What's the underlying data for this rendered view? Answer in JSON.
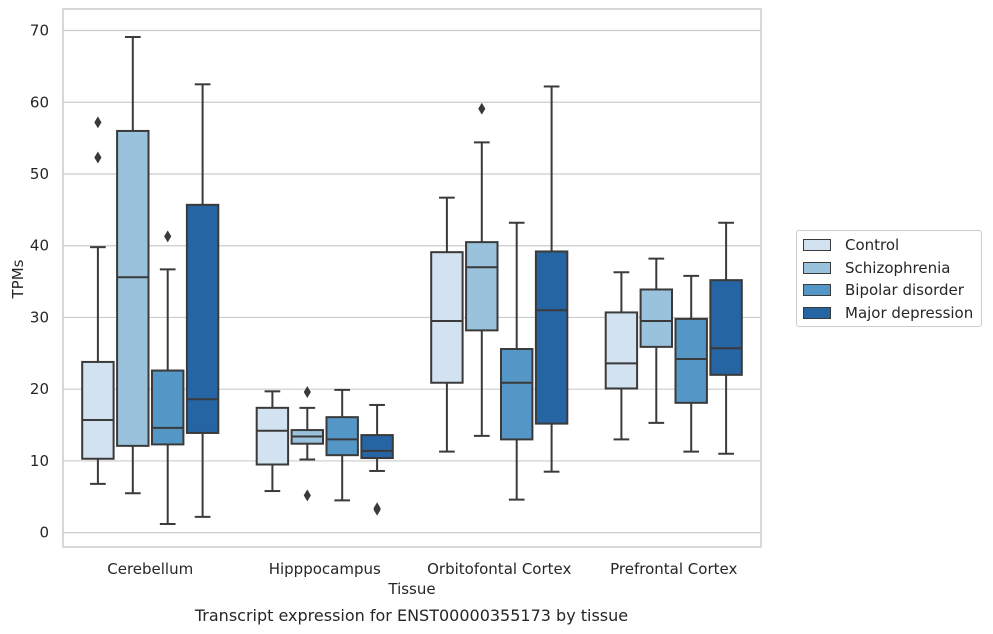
{
  "chart_data": {
    "type": "box",
    "title": "",
    "caption": "Transcript expression for ENST00000355173 by tissue",
    "xlabel": "Tissue",
    "ylabel": "TPMs",
    "ylim": [
      -2,
      73
    ],
    "yticks": [
      0,
      10,
      20,
      30,
      40,
      50,
      60,
      70
    ],
    "grid": "horizontal",
    "legend_position": "right",
    "categories": [
      "Cerebellum",
      "Hipppocampus",
      "Orbitofontal Cortex",
      "Prefrontal Cortex"
    ],
    "series": [
      {
        "name": "Control",
        "color": "#d2e2f1",
        "boxes": [
          {
            "whisker_low": 6.8,
            "q1": 10.3,
            "median": 15.7,
            "q3": 23.8,
            "whisker_high": 39.8,
            "outliers": [
              57.2,
              52.3
            ]
          },
          {
            "whisker_low": 5.8,
            "q1": 9.5,
            "median": 14.2,
            "q3": 17.4,
            "whisker_high": 19.7,
            "outliers": []
          },
          {
            "whisker_low": 11.3,
            "q1": 20.9,
            "median": 29.5,
            "q3": 39.1,
            "whisker_high": 46.7,
            "outliers": []
          },
          {
            "whisker_low": 13.0,
            "q1": 20.1,
            "median": 23.6,
            "q3": 30.7,
            "whisker_high": 36.3,
            "outliers": []
          }
        ]
      },
      {
        "name": "Schizophrenia",
        "color": "#9ac2dc",
        "boxes": [
          {
            "whisker_low": 5.5,
            "q1": 12.1,
            "median": 35.6,
            "q3": 56.0,
            "whisker_high": 69.1,
            "outliers": []
          },
          {
            "whisker_low": 10.2,
            "q1": 12.4,
            "median": 13.4,
            "q3": 14.3,
            "whisker_high": 17.4,
            "outliers": [
              19.6,
              5.2
            ]
          },
          {
            "whisker_low": 13.5,
            "q1": 28.2,
            "median": 37.0,
            "q3": 40.5,
            "whisker_high": 54.4,
            "outliers": [
              59.1
            ]
          },
          {
            "whisker_low": 15.3,
            "q1": 25.9,
            "median": 29.5,
            "q3": 33.9,
            "whisker_high": 38.2,
            "outliers": []
          }
        ]
      },
      {
        "name": "Bipolar disorder",
        "color": "#5497c6",
        "boxes": [
          {
            "whisker_low": 1.2,
            "q1": 12.3,
            "median": 14.6,
            "q3": 22.6,
            "whisker_high": 36.7,
            "outliers": [
              41.3
            ]
          },
          {
            "whisker_low": 4.5,
            "q1": 10.8,
            "median": 13.0,
            "q3": 16.1,
            "whisker_high": 19.9,
            "outliers": []
          },
          {
            "whisker_low": 4.6,
            "q1": 13.0,
            "median": 20.9,
            "q3": 25.6,
            "whisker_high": 43.2,
            "outliers": []
          },
          {
            "whisker_low": 11.3,
            "q1": 18.1,
            "median": 24.2,
            "q3": 29.8,
            "whisker_high": 35.8,
            "outliers": []
          }
        ]
      },
      {
        "name": "Major depression",
        "color": "#2565a3",
        "boxes": [
          {
            "whisker_low": 2.2,
            "q1": 13.9,
            "median": 18.6,
            "q3": 45.7,
            "whisker_high": 62.5,
            "outliers": []
          },
          {
            "whisker_low": 8.6,
            "q1": 10.4,
            "median": 11.4,
            "q3": 13.6,
            "whisker_high": 17.8,
            "outliers": [
              3.4,
              3.2
            ]
          },
          {
            "whisker_low": 8.5,
            "q1": 15.2,
            "median": 31.0,
            "q3": 39.2,
            "whisker_high": 62.2,
            "outliers": []
          },
          {
            "whisker_low": 11.0,
            "q1": 22.0,
            "median": 25.7,
            "q3": 35.2,
            "whisker_high": 43.2,
            "outliers": []
          }
        ]
      }
    ]
  }
}
